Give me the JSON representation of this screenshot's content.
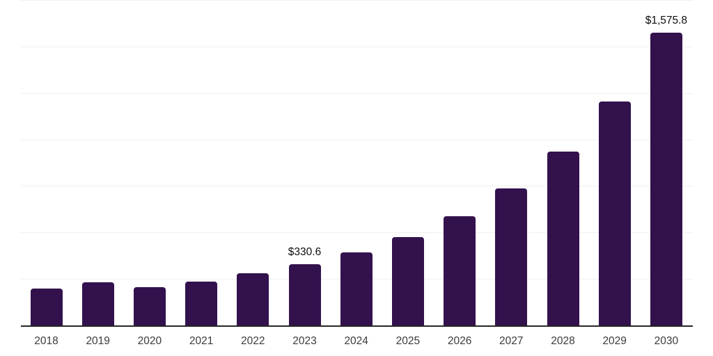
{
  "chart_data": {
    "type": "bar",
    "categories": [
      "2018",
      "2019",
      "2020",
      "2021",
      "2022",
      "2023",
      "2024",
      "2025",
      "2026",
      "2027",
      "2028",
      "2029",
      "2030"
    ],
    "values": [
      198,
      232,
      207,
      235,
      281,
      330.6,
      392,
      475,
      587,
      736,
      934,
      1203,
      1575.8
    ],
    "data_labels": [
      "",
      "",
      "",
      "",
      "",
      "$330.6",
      "",
      "",
      "",
      "",
      "",
      "",
      "$1,575.8"
    ],
    "title": "",
    "xlabel": "",
    "ylabel": "",
    "ylim": [
      0,
      1750
    ],
    "gridline_interval": 250,
    "grid": "horizontal-only",
    "legend": "none",
    "y_tick_labels_visible": false,
    "colors": {
      "bar": "#33114d",
      "gridline": "#f0f0f2",
      "axis_line": "#262626",
      "tick_label": "#3b3b3b",
      "data_label": "#0d0d0d",
      "background": "#ffffff"
    }
  }
}
